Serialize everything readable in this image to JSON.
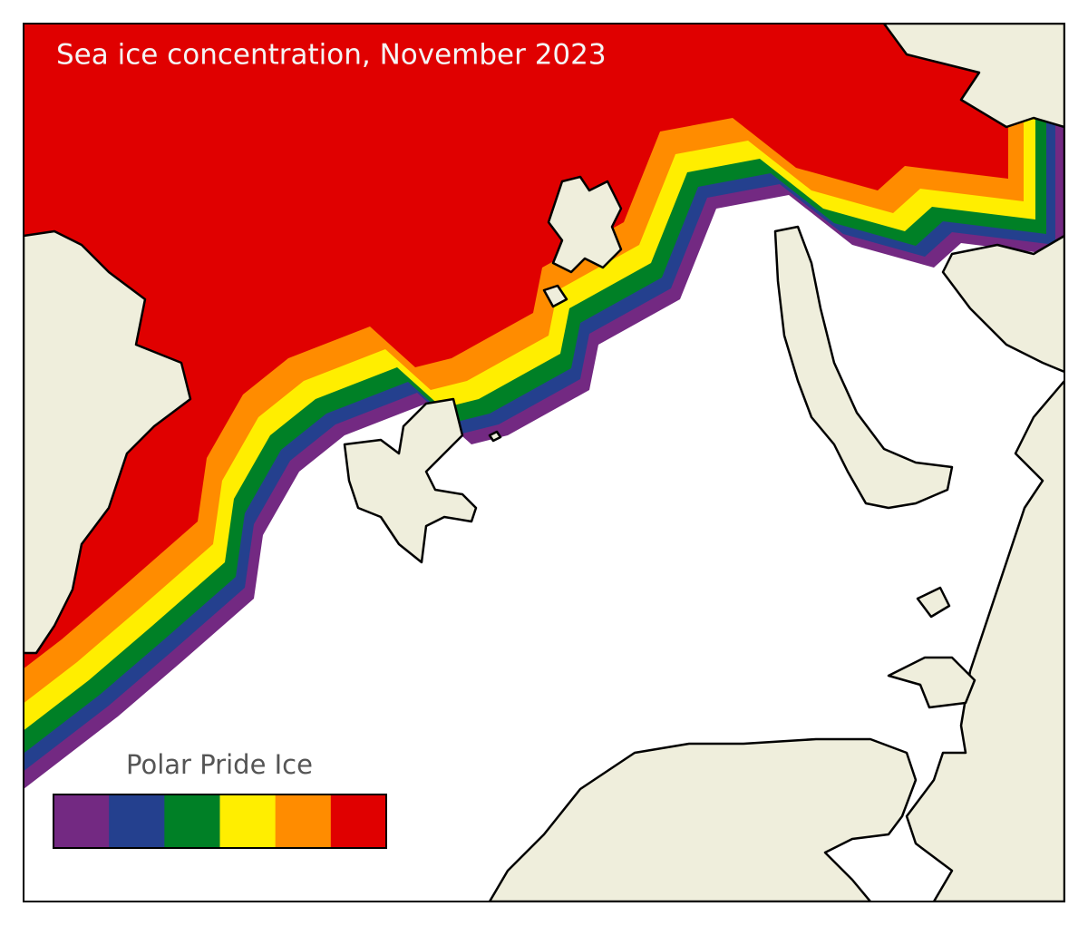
{
  "title": "Sea ice concentration, November 2023",
  "legend": {
    "title": "Polar Pride Ice",
    "colors": [
      "#732982",
      "#24408e",
      "#008026",
      "#ffee00",
      "#ff8c00",
      "#e00000"
    ]
  }
}
